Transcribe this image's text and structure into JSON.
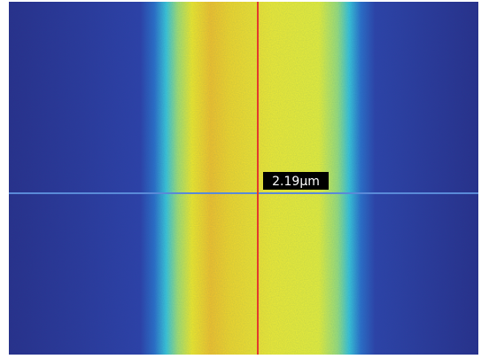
{
  "measurement": {
    "label": "2.19µm"
  }
}
